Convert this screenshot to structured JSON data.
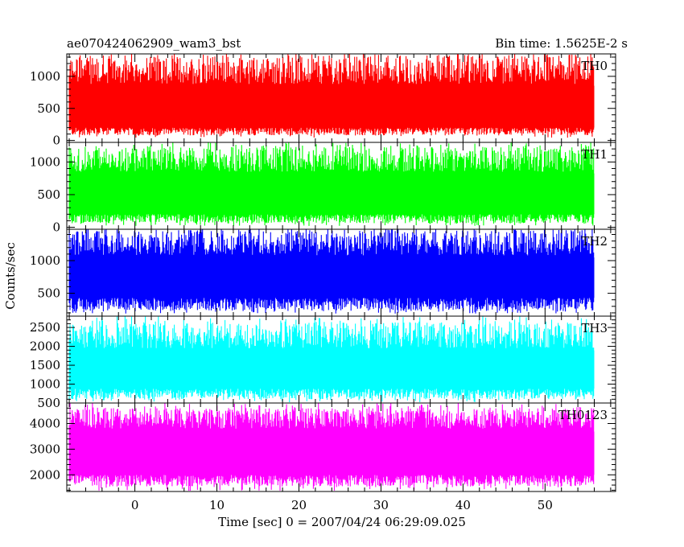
{
  "chart_data": {
    "type": "line",
    "title": "ae070424062909_wam3_bst",
    "subtitle": "Bin time: 1.5625E-2 s",
    "xlabel": "Time [sec] 0 = 2007/04/24 06:29:09.025",
    "ylabel": "Counts/sec",
    "xlim": [
      -8.3,
      58.6
    ],
    "x_range_data": [
      -8,
      56
    ],
    "x_ticks": [
      0,
      10,
      20,
      30,
      40,
      50
    ],
    "grid": false,
    "legend": "none",
    "panels": [
      {
        "name": "TH0",
        "color": "#ff0000",
        "ylim": [
          -30,
          1350
        ],
        "y_ticks": [
          0,
          500,
          1000
        ],
        "band_low": [
          80,
          200
        ],
        "band_high": [
          880,
          1320
        ],
        "spike_max": 1350,
        "spike_min": 40
      },
      {
        "name": "TH1",
        "color": "#00ff00",
        "ylim": [
          -30,
          1300
        ],
        "y_ticks": [
          0,
          500,
          1000
        ],
        "band_low": [
          60,
          200
        ],
        "band_high": [
          850,
          1230
        ],
        "spike_max": 1300,
        "spike_min": 20
      },
      {
        "name": "TH2",
        "color": "#0000ff",
        "ylim": [
          150,
          1480
        ],
        "y_ticks": [
          500,
          1000
        ],
        "band_low": [
          230,
          430
        ],
        "band_high": [
          1080,
          1460
        ],
        "spike_max": 1480,
        "spike_min": 190
      },
      {
        "name": "TH3",
        "color": "#00ffff",
        "ylim": [
          500,
          2800
        ],
        "y_ticks": [
          500,
          1000,
          1500,
          2000,
          2500
        ],
        "band_low": [
          600,
          880
        ],
        "band_high": [
          1950,
          2650
        ],
        "spike_max": 2800,
        "spike_min": 520
      },
      {
        "name": "TH0123",
        "color": "#ff00ff",
        "ylim": [
          1350,
          4800
        ],
        "y_ticks": [
          2000,
          3000,
          4000
        ],
        "band_low": [
          1550,
          2000
        ],
        "band_high": [
          3800,
          4600
        ],
        "spike_max": 4800,
        "spike_min": 1380
      }
    ]
  }
}
